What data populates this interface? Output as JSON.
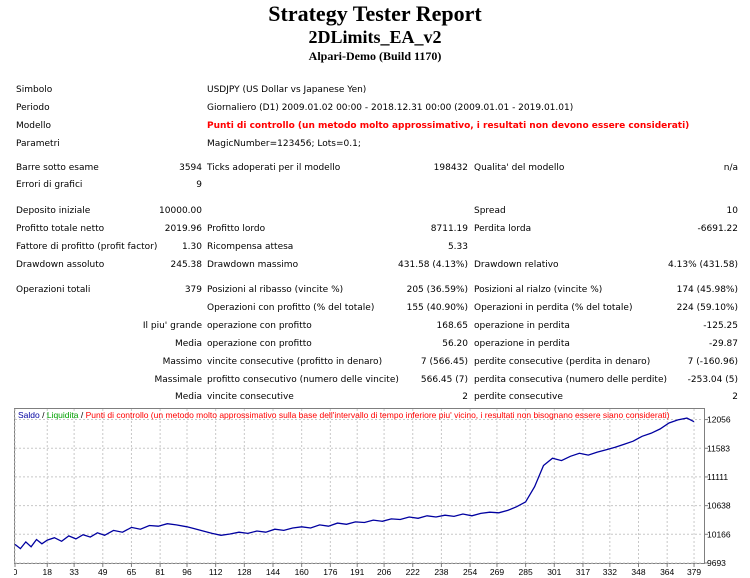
{
  "report": {
    "title": "Strategy Tester Report",
    "ea_name": "2DLimits_EA_v2",
    "server": "Alpari-Demo (Build 1170)"
  },
  "info": {
    "simbolo_label": "Simbolo",
    "simbolo_value": "USDJPY (US Dollar vs Japanese Yen)",
    "periodo_label": "Periodo",
    "periodo_value": "Giornaliero (D1) 2009.01.02 00:00 - 2018.12.31 00:00 (2009.01.01 - 2019.01.01)",
    "modello_label": "Modello",
    "modello_value": "Punti di controllo (un metodo molto approssimativo, i resultati non devono essere considerati)",
    "parametri_label": "Parametri",
    "parametri_value": "MagicNumber=123456; Lots=0.1;"
  },
  "stats": {
    "barre_label": "Barre sotto esame",
    "barre_value": "3594",
    "ticks_label": "Ticks adoperati per il modello",
    "ticks_value": "198432",
    "qualita_label": "Qualita' del modello",
    "qualita_value": "n/a",
    "errori_label": "Errori di grafici",
    "errori_value": "9",
    "deposito_label": "Deposito iniziale",
    "deposito_value": "10000.00",
    "spread_label": "Spread",
    "spread_value": "10",
    "profitto_netto_label": "Profitto totale netto",
    "profitto_netto_value": "2019.96",
    "profitto_lordo_label": "Profitto lordo",
    "profitto_lordo_value": "8711.19",
    "perdita_lorda_label": "Perdita lorda",
    "perdita_lorda_value": "-6691.22",
    "fattore_label": "Fattore di profitto (profit factor)",
    "fattore_value": "1.30",
    "ricompensa_label": "Ricompensa attesa",
    "ricompensa_value": "5.33",
    "dd_assoluto_label": "Drawdown assoluto",
    "dd_assoluto_value": "245.38",
    "dd_massimo_label": "Drawdown massimo",
    "dd_massimo_value": "431.58 (4.13%)",
    "dd_relativo_label": "Drawdown relativo",
    "dd_relativo_value": "4.13% (431.58)",
    "operazioni_label": "Operazioni totali",
    "operazioni_value": "379",
    "pos_ribasso_label": "Posizioni al ribasso (vincite %)",
    "pos_ribasso_value": "205 (36.59%)",
    "pos_rialzo_label": "Posizioni al rialzo (vincite %)",
    "pos_rialzo_value": "174 (45.98%)",
    "op_profitto_label": "Operazioni con profitto (% del totale)",
    "op_profitto_value": "155 (40.90%)",
    "op_perdita_label": "Operazioni in perdita (% del totale)",
    "op_perdita_value": "224 (59.10%)",
    "piu_grande_label": "Il piu' grande",
    "piu_grande_profit_label": "operazione con profitto",
    "piu_grande_profit_value": "168.65",
    "piu_grande_loss_label": "operazione in perdita",
    "piu_grande_loss_value": "-125.25",
    "media_label": "Media",
    "media_profit_label": "operazione con profitto",
    "media_profit_value": "56.20",
    "media_loss_label": "operazione in perdita",
    "media_loss_value": "-29.87",
    "massimo_label": "Massimo",
    "massimo_win_label": "vincite consecutive (profitto in denaro)",
    "massimo_win_value": "7 (566.45)",
    "massimo_loss_label": "perdite consecutive (perdita in denaro)",
    "massimo_loss_value": "7 (-160.96)",
    "massimale_label": "Massimale",
    "massimale_win_label": "profitto consecutivo (numero delle vincite)",
    "massimale_win_value": "566.45 (7)",
    "massimale_loss_label": "perdita consecutiva (numero delle perdite)",
    "massimale_loss_value": "-253.04 (5)",
    "media2_label": "Media",
    "media2_win_label": "vincite consecutive",
    "media2_win_value": "2",
    "media2_loss_label": "perdite consecutive",
    "media2_loss_value": "2"
  },
  "chart_data": {
    "type": "line",
    "legend": {
      "balance": "Saldo",
      "sep1": " / ",
      "equity": "Liquidita",
      "sep2": " / ",
      "note": "Punti di controllo (un metodo molto approssimativo sulla base dell'intervallo di tempo inferiore piu' vicino, i resultati non bisognano essere siano considerati)"
    },
    "colors": {
      "balance": "#0000a0",
      "equity": "#00a000",
      "note": "#ff0000",
      "frame": "#7f7f7f",
      "grid": "#c8c8c8"
    },
    "y_ticks": [
      12056,
      11583,
      11111,
      10638,
      10166,
      9693
    ],
    "x_ticks": [
      0,
      18,
      33,
      49,
      65,
      81,
      96,
      112,
      128,
      144,
      160,
      176,
      191,
      206,
      222,
      238,
      254,
      269,
      285,
      301,
      317,
      332,
      348,
      364,
      379
    ],
    "ylim": [
      9693,
      12230
    ],
    "xlim": [
      0,
      384
    ],
    "series": [
      {
        "name": "Saldo",
        "x": [
          0,
          3,
          6,
          9,
          12,
          15,
          18,
          22,
          26,
          30,
          34,
          38,
          42,
          46,
          50,
          55,
          60,
          65,
          70,
          75,
          80,
          85,
          90,
          96,
          100,
          105,
          110,
          115,
          120,
          125,
          130,
          135,
          140,
          145,
          150,
          155,
          160,
          165,
          170,
          175,
          180,
          185,
          190,
          195,
          200,
          205,
          210,
          215,
          220,
          225,
          230,
          235,
          240,
          245,
          250,
          255,
          260,
          265,
          270,
          275,
          280,
          285,
          290,
          295,
          300,
          305,
          310,
          315,
          320,
          325,
          330,
          335,
          340,
          345,
          350,
          355,
          360,
          365,
          370,
          375,
          379
        ],
        "values": [
          10000,
          9930,
          10040,
          9960,
          10080,
          10010,
          10070,
          10110,
          10050,
          10140,
          10090,
          10160,
          10120,
          10190,
          10150,
          10230,
          10200,
          10280,
          10250,
          10310,
          10300,
          10340,
          10320,
          10290,
          10260,
          10220,
          10180,
          10150,
          10170,
          10200,
          10180,
          10220,
          10200,
          10250,
          10230,
          10270,
          10290,
          10270,
          10320,
          10300,
          10350,
          10330,
          10370,
          10360,
          10400,
          10380,
          10420,
          10410,
          10450,
          10430,
          10470,
          10450,
          10480,
          10460,
          10500,
          10470,
          10510,
          10530,
          10520,
          10560,
          10620,
          10700,
          10950,
          11300,
          11420,
          11380,
          11450,
          11500,
          11470,
          11520,
          11560,
          11600,
          11650,
          11700,
          11780,
          11830,
          11900,
          12000,
          12050,
          12080,
          12020
        ]
      }
    ]
  }
}
